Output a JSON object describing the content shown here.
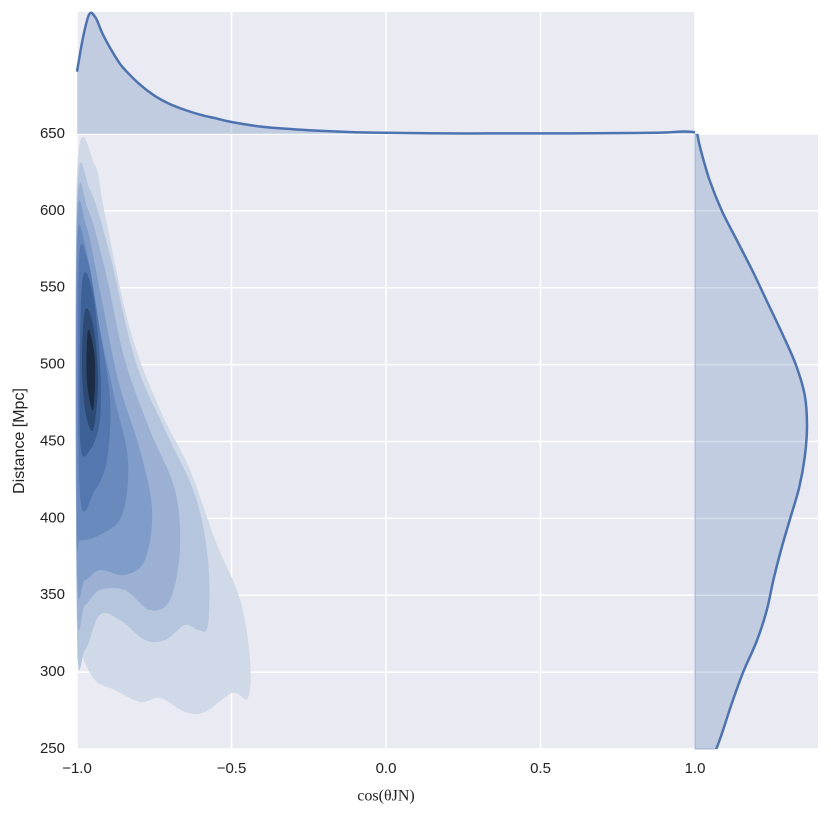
{
  "chart_data": {
    "type": "kde-joint",
    "xlabel": "cos(θJN)",
    "ylabel": "Distance [Mpc]",
    "xlim": [
      -1,
      1
    ],
    "ylim": [
      250,
      650
    ],
    "xticks": [
      {
        "value": -1,
        "label": "−1.0"
      },
      {
        "value": -0.5,
        "label": "−0.5"
      },
      {
        "value": 0,
        "label": "0.0"
      },
      {
        "value": 0.5,
        "label": "0.5"
      },
      {
        "value": 1,
        "label": "1.0"
      }
    ],
    "yticks": [
      250,
      300,
      350,
      400,
      450,
      500,
      550,
      600,
      650
    ],
    "grid": true,
    "line_color": "#4c72b0",
    "top_marginal": {
      "x": [
        -1,
        -0.98,
        -0.96,
        -0.94,
        -0.92,
        -0.9,
        -0.87,
        -0.85,
        -0.8,
        -0.75,
        -0.7,
        -0.65,
        -0.6,
        -0.55,
        -0.5,
        -0.4,
        -0.3,
        -0.2,
        -0.1,
        0,
        0.2,
        0.4,
        0.6,
        0.8,
        0.9,
        0.95,
        0.98,
        1
      ],
      "density": [
        0.52,
        0.81,
        1.0,
        0.97,
        0.85,
        0.75,
        0.62,
        0.55,
        0.42,
        0.32,
        0.25,
        0.2,
        0.16,
        0.13,
        0.1,
        0.06,
        0.04,
        0.025,
        0.015,
        0.01,
        0.005,
        0.005,
        0.005,
        0.008,
        0.012,
        0.02,
        0.02,
        0.015
      ]
    },
    "right_marginal": {
      "y": [
        250,
        260,
        280,
        300,
        320,
        340,
        360,
        380,
        400,
        420,
        440,
        460,
        480,
        500,
        520,
        540,
        560,
        580,
        600,
        620,
        640,
        650
      ],
      "density": [
        0.19,
        0.24,
        0.33,
        0.43,
        0.55,
        0.64,
        0.7,
        0.77,
        0.85,
        0.93,
        0.98,
        1.0,
        0.98,
        0.9,
        0.78,
        0.65,
        0.52,
        0.38,
        0.24,
        0.13,
        0.05,
        0.02
      ]
    },
    "contours": [
      {
        "color": "#d0d9e8",
        "x": [
          -1,
          -0.942,
          -0.909,
          -0.828,
          -0.731,
          -0.634,
          -0.553,
          -0.472,
          -0.44,
          -0.447,
          -0.498,
          -0.586,
          -0.65,
          -0.731,
          -0.796,
          -0.877,
          -0.942,
          -0.99,
          -1
        ],
        "y": [
          623.3,
          629.8,
          597.3,
          522.5,
          470.5,
          431.5,
          385.9,
          346.9,
          307.9,
          283.2,
          286.4,
          274.1,
          274.1,
          283.2,
          280.6,
          288.4,
          294.9,
          314.4,
          333.9
        ]
      },
      {
        "color": "#b5c5de",
        "x": [
          -1,
          -0.958,
          -0.893,
          -0.812,
          -0.715,
          -0.618,
          -0.576,
          -0.576,
          -0.608,
          -0.65,
          -0.715,
          -0.78,
          -0.861,
          -0.926,
          -0.974,
          -1
        ],
        "y": [
          607,
          613.6,
          571.3,
          503,
          457.5,
          415.2,
          372.9,
          330.7,
          327.4,
          330.7,
          320.9,
          320.9,
          333.9,
          337.2,
          314.4,
          327.4
        ]
      },
      {
        "color": "#9bb0d3",
        "x": [
          -1,
          -0.964,
          -0.909,
          -0.845,
          -0.764,
          -0.683,
          -0.667,
          -0.699,
          -0.764,
          -0.845,
          -0.926,
          -0.974,
          -1
        ],
        "y": [
          597.3,
          600.6,
          561.5,
          503,
          457.5,
          418.5,
          379.4,
          346.9,
          340.4,
          353.4,
          353.4,
          343.7,
          346.9
        ]
      },
      {
        "color": "#809cc8",
        "x": [
          -1,
          -0.971,
          -0.926,
          -0.867,
          -0.796,
          -0.757,
          -0.78,
          -0.845,
          -0.926,
          -0.974,
          -1
        ],
        "y": [
          587.6,
          590.8,
          548.5,
          490,
          444.4,
          405.4,
          372.9,
          363.2,
          366.4,
          359.9,
          366.4
        ]
      },
      {
        "color": "#6a8abe",
        "x": [
          -1,
          -0.974,
          -0.932,
          -0.877,
          -0.835,
          -0.854,
          -0.926,
          -0.99,
          -1
        ],
        "y": [
          574.6,
          577.8,
          529,
          477,
          438,
          402.2,
          389.2,
          385.9,
          392.4
        ]
      },
      {
        "color": "#5477af",
        "x": [
          -0.994,
          -0.964,
          -0.926,
          -0.893,
          -0.903,
          -0.942,
          -0.99
        ],
        "y": [
          564.8,
          566.8,
          522.5,
          477,
          438,
          418.5,
          415.2
        ]
      },
      {
        "color": "#3e6298",
        "x": [
          -0.984,
          -0.951,
          -0.926,
          -0.926,
          -0.958,
          -0.99
        ],
        "y": [
          551.8,
          548.5,
          503,
          464,
          444.4,
          450.9
        ]
      },
      {
        "color": "#2d4a74",
        "x": [
          -0.974,
          -0.948,
          -0.932,
          -0.948,
          -0.974,
          -0.984
        ],
        "y": [
          535.5,
          525.8,
          490,
          457.5,
          470.5,
          503
        ]
      },
      {
        "color": "#1c2c45",
        "x": [
          -0.964,
          -0.942,
          -0.948,
          -0.968
        ],
        "y": [
          522.5,
          503,
          470.5,
          490
        ]
      }
    ]
  }
}
